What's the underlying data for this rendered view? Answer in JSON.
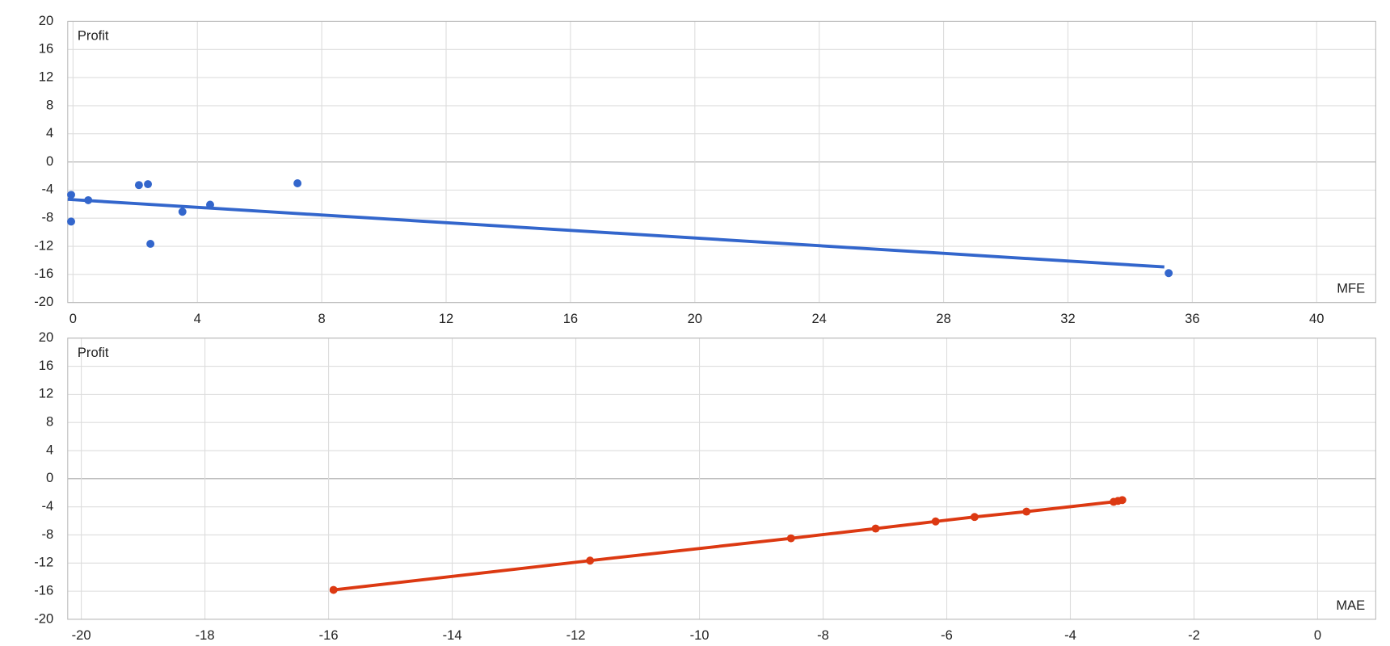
{
  "chart_data": [
    {
      "type": "scatter",
      "y_label": "Profit",
      "x_label": "MFE",
      "color": "#3366cc",
      "x": [
        -0.06,
        -0.06,
        0.49,
        2.12,
        2.41,
        2.49,
        3.52,
        4.41,
        7.22,
        35.24
      ],
      "values": [
        -4.68,
        -8.48,
        -5.44,
        -3.29,
        -3.16,
        -11.65,
        -7.09,
        -6.08,
        -3.04,
        -15.82
      ],
      "trendline": {
        "x": [
          -0.17,
          35.1
        ],
        "values": [
          -5.32,
          -14.94
        ]
      },
      "xlim": [
        -0.17,
        41.9
      ],
      "xticks": [
        0,
        4,
        8,
        12,
        16,
        20,
        24,
        28,
        32,
        36,
        40
      ],
      "ylim": [
        -20,
        20
      ],
      "yticks": [
        -20,
        -16,
        -12,
        -8,
        -4,
        0,
        4,
        8,
        12,
        16,
        20
      ],
      "grid": true
    },
    {
      "type": "line",
      "y_label": "Profit",
      "x_label": "MAE",
      "color": "#dc3912",
      "x": [
        -15.92,
        -11.77,
        -8.52,
        -7.15,
        -6.18,
        -5.55,
        -4.71,
        -3.3,
        -3.23,
        -3.16
      ],
      "values": [
        -15.82,
        -11.65,
        -8.48,
        -7.09,
        -6.08,
        -5.44,
        -4.68,
        -3.29,
        -3.16,
        -3.04
      ],
      "xlim": [
        -20.22,
        0.94
      ],
      "xticks": [
        -20,
        -18,
        -16,
        -14,
        -12,
        -10,
        -8,
        -6,
        -4,
        -2,
        0
      ],
      "ylim": [
        -20,
        20
      ],
      "yticks": [
        -20,
        -16,
        -12,
        -8,
        -4,
        0,
        4,
        8,
        12,
        16,
        20
      ],
      "grid": true
    }
  ]
}
